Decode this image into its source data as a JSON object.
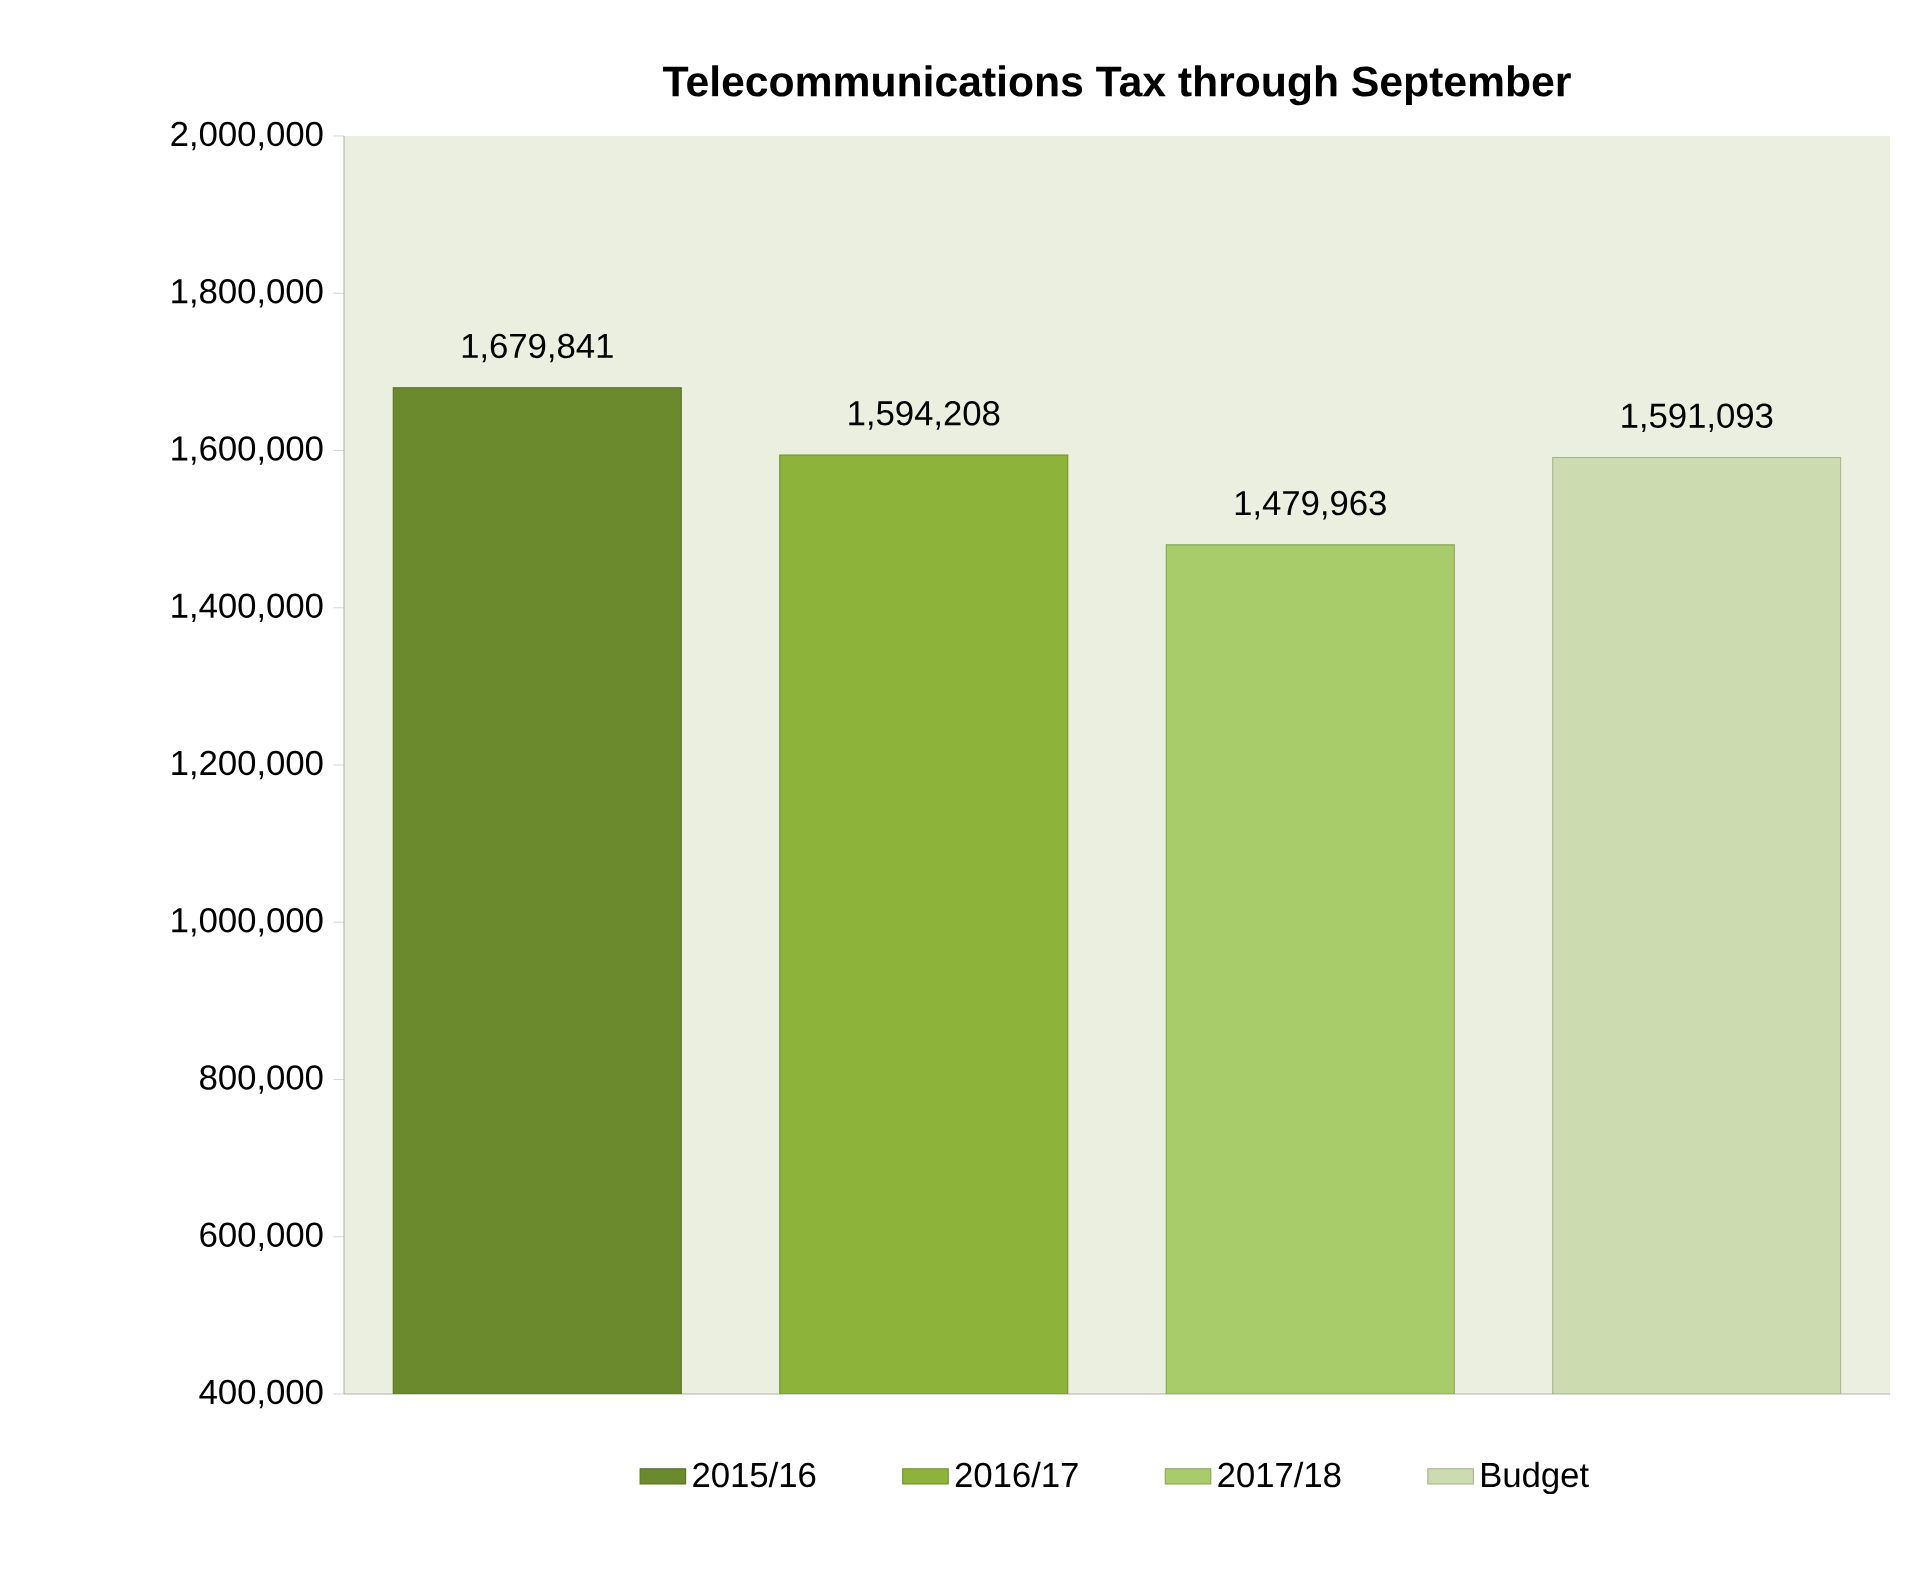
{
  "chart_data": {
    "type": "bar",
    "title": "Telecommunications Tax through September",
    "categories": [
      null,
      null,
      null,
      null
    ],
    "series": [
      {
        "name": "2015/16",
        "color": "#6b8a2e",
        "values": [
          1679841,
          null,
          null,
          null
        ],
        "value_labels": [
          "1,679,841",
          null,
          null,
          null
        ]
      },
      {
        "name": "2016/17",
        "color": "#8db33a",
        "values": [
          null,
          1594208,
          null,
          null
        ],
        "value_labels": [
          null,
          "1,594,208",
          null,
          null
        ]
      },
      {
        "name": "2017/18",
        "color": "#a9cc6a",
        "values": [
          null,
          null,
          1479963,
          null
        ],
        "value_labels": [
          null,
          null,
          "1,479,963",
          null
        ]
      },
      {
        "name": "Budget",
        "color": "#cddcb0",
        "values": [
          null,
          null,
          null,
          1591093
        ],
        "value_labels": [
          null,
          null,
          null,
          "1,591,093"
        ]
      }
    ],
    "ylim": [
      400000,
      2000000
    ],
    "yticks": [
      {
        "value": 400000,
        "label": "400,000"
      },
      {
        "value": 600000,
        "label": "600,000"
      },
      {
        "value": 800000,
        "label": "800,000"
      },
      {
        "value": 1000000,
        "label": "1,000,000"
      },
      {
        "value": 1200000,
        "label": "1,200,000"
      },
      {
        "value": 1400000,
        "label": "1,400,000"
      },
      {
        "value": 1600000,
        "label": "1,600,000"
      },
      {
        "value": 1800000,
        "label": "1,800,000"
      },
      {
        "value": 2000000,
        "label": "2,000,000"
      }
    ],
    "grid": false,
    "legend": "bottom"
  }
}
